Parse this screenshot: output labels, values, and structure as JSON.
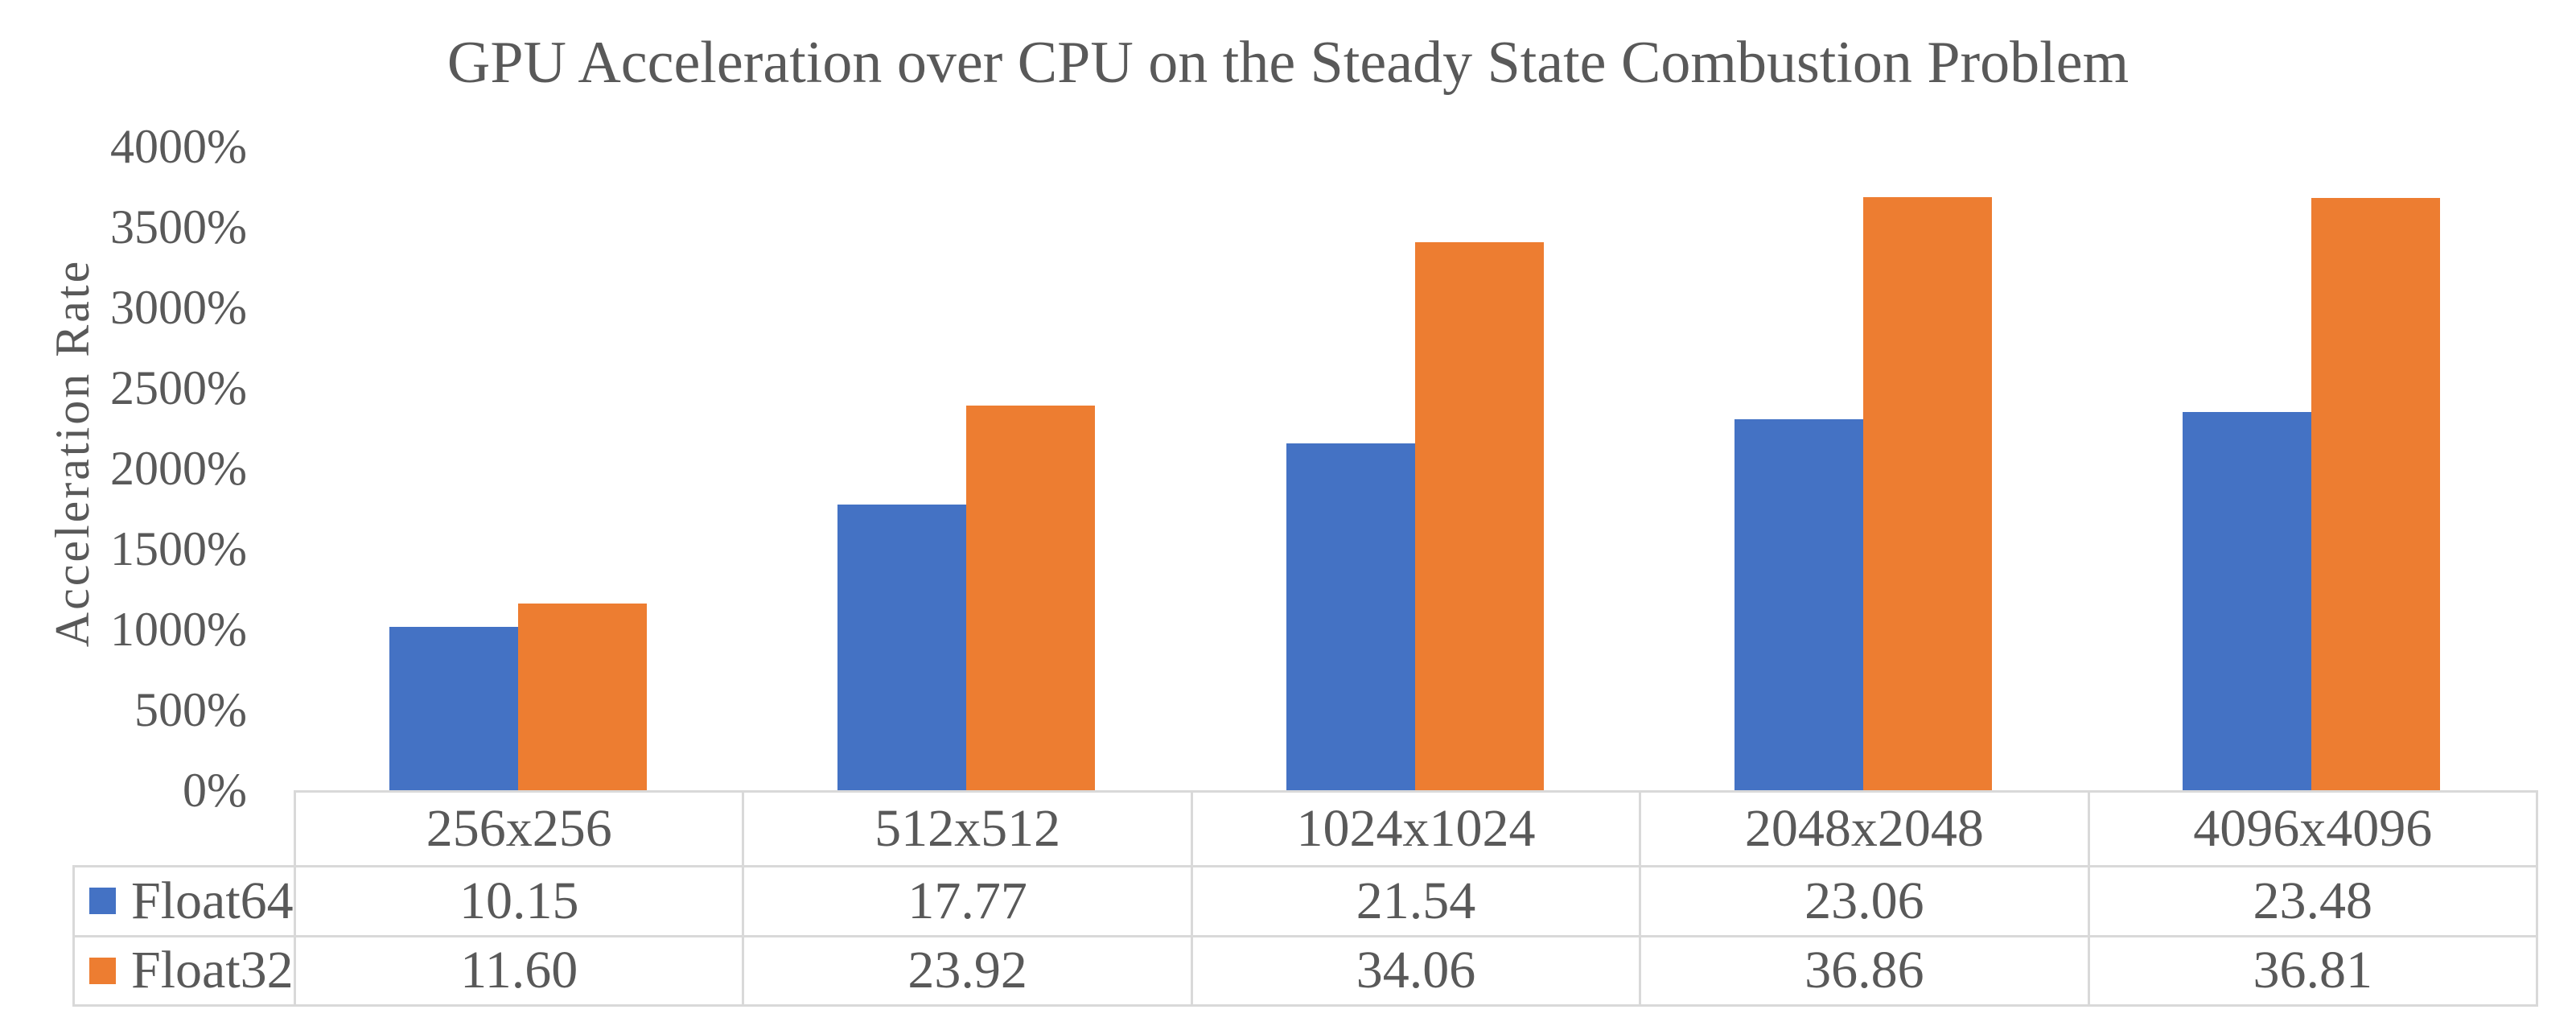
{
  "title": "GPU Acceleration over CPU on the Steady State Combustion Problem",
  "y_axis": {
    "label": "Acceleration Rate",
    "ticks": [
      "4000%",
      "3500%",
      "3000%",
      "2500%",
      "2000%",
      "1500%",
      "1000%",
      "500%",
      "0%"
    ]
  },
  "table": {
    "headers": [
      "256x256",
      "512x512",
      "1024x1024",
      "2048x2048",
      "4096x4096"
    ],
    "rows": [
      {
        "legend": "Float64",
        "swatch_color": "#4472C4",
        "cells": [
          "10.15",
          "17.77",
          "21.54",
          "23.06",
          "23.48"
        ]
      },
      {
        "legend": "Float32",
        "swatch_color": "#ED7D31",
        "cells": [
          "11.60",
          "23.92",
          "34.06",
          "36.86",
          "36.81"
        ]
      }
    ]
  },
  "chart_data": {
    "type": "bar",
    "title": "GPU Acceleration over CPU on the Steady State Combustion Problem",
    "xlabel": "",
    "ylabel": "Acceleration Rate",
    "categories": [
      "256x256",
      "512x512",
      "1024x1024",
      "2048x2048",
      "4096x4096"
    ],
    "series": [
      {
        "name": "Float64",
        "color": "#4472C4",
        "values": [
          10.15,
          17.77,
          21.54,
          23.06,
          23.48
        ],
        "values_percent": [
          1015,
          1777,
          2154,
          2306,
          2348
        ]
      },
      {
        "name": "Float32",
        "color": "#ED7D31",
        "values": [
          11.6,
          23.92,
          34.06,
          36.86,
          36.81
        ],
        "values_percent": [
          1160,
          2392,
          3406,
          3686,
          3681
        ]
      }
    ],
    "ylim_percent": [
      0,
      4000
    ],
    "ytick_step_percent": 500,
    "gridlines": false,
    "legend_position": "left column of data table",
    "text_color": "#595959",
    "table_border_color": "#D9D9D9"
  }
}
